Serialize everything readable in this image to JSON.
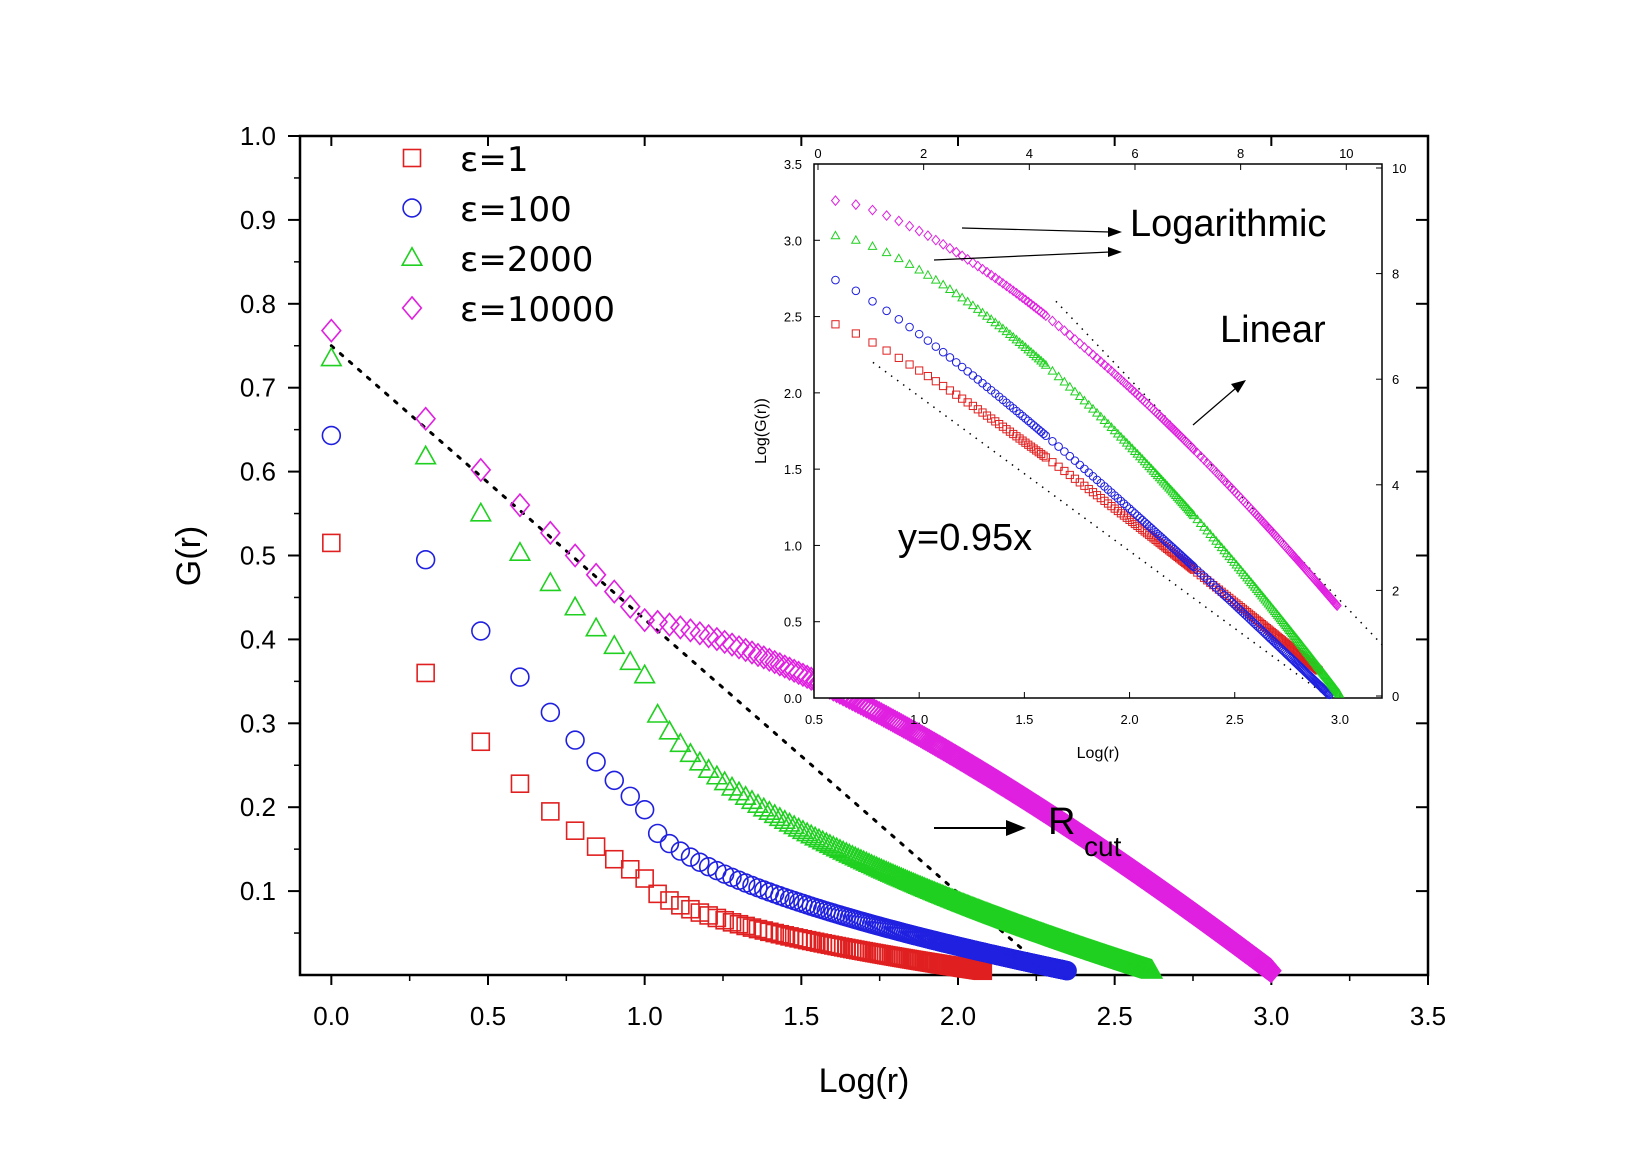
{
  "chart_data": [
    {
      "type": "scatter",
      "xlabel": "Log(r)",
      "ylabel": "G(r)",
      "xlim": [
        -0.1,
        3.5
      ],
      "ylim": [
        0.0,
        1.0
      ],
      "x_ticks": [
        "0.0",
        "0.5",
        "1.0",
        "1.5",
        "2.0",
        "2.5",
        "3.0",
        "3.5"
      ],
      "y_ticks": [
        "0.1",
        "0.2",
        "0.3",
        "0.4",
        "0.5",
        "0.6",
        "0.7",
        "0.8",
        "0.9",
        "1.0"
      ],
      "legend_position": "top-left",
      "series": [
        {
          "name": "ε=1",
          "marker": "square",
          "color": "#e02020",
          "x_end": 2.08,
          "points": [
            [
              0.0,
              0.515
            ],
            [
              0.301,
              0.36
            ],
            [
              0.477,
              0.278
            ],
            [
              0.602,
              0.228
            ],
            [
              0.699,
              0.195
            ],
            [
              0.778,
              0.172
            ],
            [
              0.845,
              0.153
            ],
            [
              0.903,
              0.138
            ],
            [
              0.954,
              0.126
            ],
            [
              1.0,
              0.115
            ]
          ]
        },
        {
          "name": "ε=100",
          "marker": "circle",
          "color": "#2020e0",
          "x_end": 2.35,
          "points": [
            [
              0.0,
              0.643
            ],
            [
              0.301,
              0.495
            ],
            [
              0.477,
              0.41
            ],
            [
              0.602,
              0.355
            ],
            [
              0.699,
              0.313
            ],
            [
              0.778,
              0.28
            ],
            [
              0.845,
              0.254
            ],
            [
              0.903,
              0.232
            ],
            [
              0.954,
              0.213
            ],
            [
              1.0,
              0.197
            ]
          ]
        },
        {
          "name": "ε=2000",
          "marker": "triangle",
          "color": "#20d020",
          "x_end": 2.62,
          "points": [
            [
              0.0,
              0.735
            ],
            [
              0.301,
              0.618
            ],
            [
              0.477,
              0.55
            ],
            [
              0.602,
              0.503
            ],
            [
              0.699,
              0.467
            ],
            [
              0.778,
              0.438
            ],
            [
              0.845,
              0.413
            ],
            [
              0.903,
              0.392
            ],
            [
              0.954,
              0.373
            ],
            [
              1.0,
              0.357
            ]
          ]
        },
        {
          "name": "ε=10000",
          "marker": "diamond",
          "color": "#e020e0",
          "x_end": 3.0,
          "points": [
            [
              0.0,
              0.768
            ],
            [
              0.301,
              0.663
            ],
            [
              0.477,
              0.602
            ],
            [
              0.602,
              0.56
            ],
            [
              0.699,
              0.527
            ],
            [
              0.778,
              0.5
            ],
            [
              0.845,
              0.477
            ],
            [
              0.903,
              0.457
            ],
            [
              0.954,
              0.439
            ],
            [
              1.0,
              0.423
            ]
          ]
        }
      ],
      "fit_line": {
        "style": "dotted",
        "x": [
          0.0,
          2.3
        ],
        "y": [
          0.75,
          0.0
        ]
      },
      "annotations": {
        "rcut_main": "R",
        "rcut_sub": "cut"
      }
    },
    {
      "type": "scatter",
      "role": "inset",
      "xlabel": "Log(r)",
      "ylabel": "Log(G(r))",
      "xlim": [
        0.5,
        3.2
      ],
      "ylim": [
        0.0,
        3.5
      ],
      "x_ticks": [
        "0.5",
        "1.0",
        "1.5",
        "2.0",
        "2.5",
        "3.0"
      ],
      "y_ticks": [
        "0.0",
        "0.5",
        "1.0",
        "1.5",
        "2.0",
        "2.5",
        "3.0",
        "3.5"
      ],
      "top_ticks": [
        "0",
        "2",
        "4",
        "6",
        "8",
        "10"
      ],
      "right_ticks": [
        "0",
        "2",
        "4",
        "6",
        "8",
        "10"
      ],
      "series": [
        {
          "name": "ε=1",
          "color": "#e02020",
          "start": [
            0.6,
            2.45
          ],
          "end": [
            2.9,
            0.18
          ]
        },
        {
          "name": "ε=100",
          "color": "#2020e0",
          "start": [
            0.6,
            2.74
          ],
          "end": [
            2.95,
            0.02
          ]
        },
        {
          "name": "ε=2000",
          "color": "#20d020",
          "start": [
            0.6,
            3.03
          ],
          "end": [
            3.0,
            0.02
          ]
        },
        {
          "name": "ε=10000",
          "color": "#e020e0",
          "start": [
            0.6,
            3.26
          ],
          "end": [
            2.99,
            0.6
          ]
        }
      ],
      "fit_lines": [
        {
          "x": [
            0.78,
            2.95
          ],
          "y": [
            2.2,
            0.0
          ]
        },
        {
          "x": [
            1.65,
            3.2
          ],
          "y": [
            2.6,
            0.35
          ]
        }
      ],
      "annotations": {
        "logarithmic": "Logarithmic",
        "linear": "Linear",
        "equation": "y=0.95x"
      }
    }
  ]
}
